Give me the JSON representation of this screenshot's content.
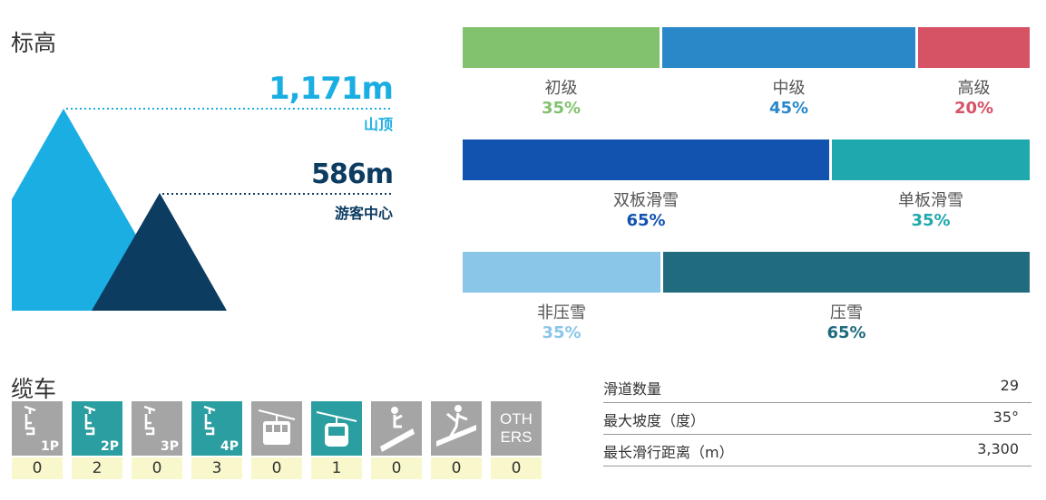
{
  "elevation": {
    "title": "标高",
    "summit": {
      "value": "1,171m",
      "label": "山顶"
    },
    "base": {
      "value": "586m",
      "label": "游客中心"
    }
  },
  "colors": {
    "summit": "#1aaee3",
    "base": "#0d3c61",
    "beginner": "#82c26f",
    "intermediate": "#2a88c9",
    "advanced": "#d65265",
    "ski": "#1253b0",
    "snowboard": "#1fa8ad",
    "ungroomed": "#8ac6e8",
    "groomed": "#206b7e",
    "lift_grey": "#a5a5a5",
    "lift_teal": "#2a9ea0",
    "count_bg": "#f8f8cc"
  },
  "bars": {
    "difficulty": [
      {
        "label": "初级",
        "pct_text": "35%",
        "share": 35
      },
      {
        "label": "中级",
        "pct_text": "45%",
        "share": 45
      },
      {
        "label": "高级",
        "pct_text": "20%",
        "share": 20
      }
    ],
    "type": [
      {
        "label": "双板滑雪",
        "pct_text": "65%",
        "share": 65
      },
      {
        "label": "单板滑雪",
        "pct_text": "35%",
        "share": 35
      }
    ],
    "grooming": [
      {
        "label": "非压雪",
        "pct_text": "35%",
        "share": 35
      },
      {
        "label": "压雪",
        "pct_text": "65%",
        "share": 65
      }
    ]
  },
  "lifts": {
    "title": "缆车",
    "items": [
      {
        "icon": "chairlift-1p-icon",
        "sub": "1P",
        "count": "0",
        "active": false
      },
      {
        "icon": "chairlift-2p-icon",
        "sub": "2P",
        "count": "2",
        "active": true
      },
      {
        "icon": "chairlift-3p-icon",
        "sub": "3P",
        "count": "0",
        "active": false
      },
      {
        "icon": "chairlift-4p-icon",
        "sub": "4P",
        "count": "3",
        "active": true
      },
      {
        "icon": "ropeway-icon",
        "sub": "",
        "count": "0",
        "active": false
      },
      {
        "icon": "gondola-icon",
        "sub": "",
        "count": "1",
        "active": true
      },
      {
        "icon": "magic-carpet-icon",
        "sub": "",
        "count": "0",
        "active": false
      },
      {
        "icon": "surface-lift-icon",
        "sub": "",
        "count": "0",
        "active": false
      },
      {
        "icon": "others-icon",
        "sub": "OTHERS",
        "count": "0",
        "active": false
      }
    ]
  },
  "stats": [
    {
      "label": "滑道数量",
      "value": "29"
    },
    {
      "label": "最大坡度（度）",
      "value": "35°"
    },
    {
      "label": "最长滑行距离（m）",
      "value": "3,300"
    }
  ]
}
